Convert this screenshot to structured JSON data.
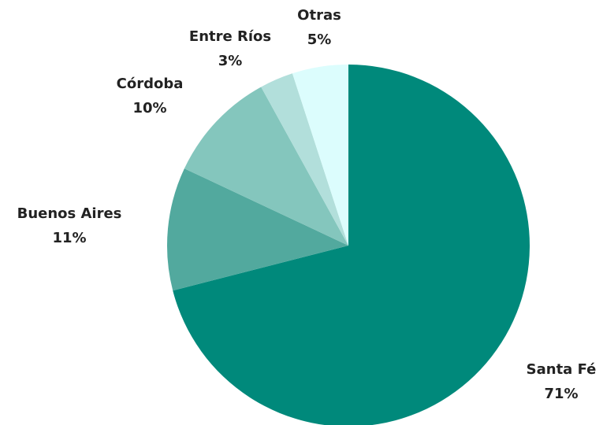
{
  "chart_data": {
    "type": "pie",
    "categories": [
      "Santa Fé",
      "Buenos Aires",
      "Córdoba",
      "Entre Ríos",
      "Otras"
    ],
    "values": [
      71,
      11,
      10,
      3,
      5
    ],
    "value_labels": [
      "71%",
      "11%",
      "10%",
      "3%",
      "5%"
    ],
    "colors": [
      "#00897b",
      "#52a99e",
      "#84c6bd",
      "#b2dfdb",
      "#dcfdfd"
    ]
  }
}
